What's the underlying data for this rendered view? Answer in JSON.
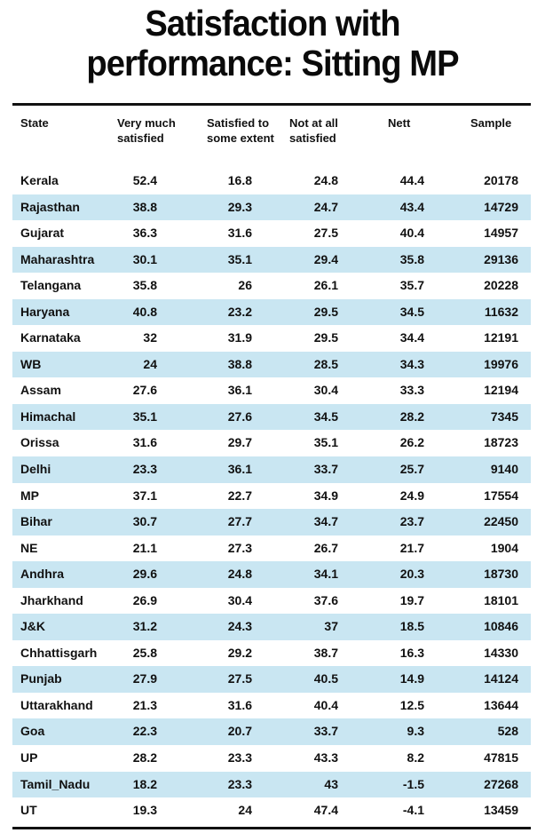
{
  "title": {
    "line1": "Satisfaction with",
    "line2": "performance: Sitting MP"
  },
  "colors": {
    "stripe": "#c9e6f2",
    "text": "#111111"
  },
  "columns": {
    "state": "State",
    "very_much_l1": "Very much",
    "very_much_l2": "satisfied",
    "some_extent_l1": "Satisfied to",
    "some_extent_l2": "some extent",
    "not_at_all_l1": "Not at all",
    "not_at_all_l2": "satisfied",
    "nett": "Nett",
    "sample": "Sample"
  },
  "rows": [
    [
      "Kerala",
      "52.4",
      "16.8",
      "24.8",
      "44.4",
      "20178"
    ],
    [
      "Rajasthan",
      "38.8",
      "29.3",
      "24.7",
      "43.4",
      "14729"
    ],
    [
      "Gujarat",
      "36.3",
      "31.6",
      "27.5",
      "40.4",
      "14957"
    ],
    [
      "Maharashtra",
      "30.1",
      "35.1",
      "29.4",
      "35.8",
      "29136"
    ],
    [
      "Telangana",
      "35.8",
      "26",
      "26.1",
      "35.7",
      "20228"
    ],
    [
      "Haryana",
      "40.8",
      "23.2",
      "29.5",
      "34.5",
      "11632"
    ],
    [
      "Karnataka",
      "32",
      "31.9",
      "29.5",
      "34.4",
      "12191"
    ],
    [
      "WB",
      "24",
      "38.8",
      "28.5",
      "34.3",
      "19976"
    ],
    [
      "Assam",
      "27.6",
      "36.1",
      "30.4",
      "33.3",
      "12194"
    ],
    [
      "Himachal",
      "35.1",
      "27.6",
      "34.5",
      "28.2",
      "7345"
    ],
    [
      "Orissa",
      "31.6",
      "29.7",
      "35.1",
      "26.2",
      "18723"
    ],
    [
      "Delhi",
      "23.3",
      "36.1",
      "33.7",
      "25.7",
      "9140"
    ],
    [
      "MP",
      "37.1",
      "22.7",
      "34.9",
      "24.9",
      "17554"
    ],
    [
      "Bihar",
      "30.7",
      "27.7",
      "34.7",
      "23.7",
      "22450"
    ],
    [
      "NE",
      "21.1",
      "27.3",
      "26.7",
      "21.7",
      "1904"
    ],
    [
      "Andhra",
      "29.6",
      "24.8",
      "34.1",
      "20.3",
      "18730"
    ],
    [
      "Jharkhand",
      "26.9",
      "30.4",
      "37.6",
      "19.7",
      "18101"
    ],
    [
      "J&K",
      "31.2",
      "24.3",
      "37",
      "18.5",
      "10846"
    ],
    [
      "Chhattisgarh",
      "25.8",
      "29.2",
      "38.7",
      "16.3",
      "14330"
    ],
    [
      "Punjab",
      "27.9",
      "27.5",
      "40.5",
      "14.9",
      "14124"
    ],
    [
      "Uttarakhand",
      "21.3",
      "31.6",
      "40.4",
      "12.5",
      "13644"
    ],
    [
      "Goa",
      "22.3",
      "20.7",
      "33.7",
      "9.3",
      "528"
    ],
    [
      "UP",
      "28.2",
      "23.3",
      "43.3",
      "8.2",
      "47815"
    ],
    [
      "Tamil_Nadu",
      "18.2",
      "23.3",
      "43",
      "-1.5",
      "27268"
    ],
    [
      "UT",
      "19.3",
      "24",
      "47.4",
      "-4.1",
      "13459"
    ]
  ]
}
